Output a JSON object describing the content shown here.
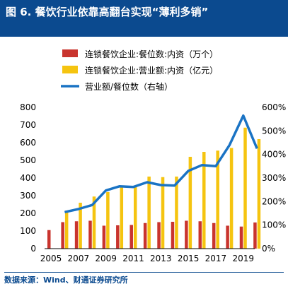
{
  "header": {
    "title": "图 6. 餐饮行业依靠高翻台实现“薄利多销”"
  },
  "footer": {
    "source": "数据来源：Wind、财通证券研究所"
  },
  "colors": {
    "header_bg": "#0b4a8f",
    "stores": "#c9342e",
    "revenue": "#f5c410",
    "ratio": "#1a73c4",
    "axis_text": "#000000"
  },
  "chart_data": {
    "type": "bar",
    "x": [
      2005,
      2006,
      2007,
      2008,
      2009,
      2010,
      2011,
      2012,
      2013,
      2014,
      2015,
      2016,
      2017,
      2018,
      2019,
      2020
    ],
    "x_tick_labels": [
      "2005",
      "2007",
      "2009",
      "2011",
      "2013",
      "2015",
      "2017",
      "2019"
    ],
    "series": [
      {
        "name": "连锁餐饮企业:餐位数:内资（万个）",
        "type": "bar",
        "axis": "left",
        "values": [
          105,
          150,
          155,
          158,
          130,
          132,
          134,
          145,
          150,
          152,
          158,
          155,
          145,
          130,
          125,
          148
        ]
      },
      {
        "name": "连锁餐饮企业:营业额:内资（亿元）",
        "type": "bar",
        "axis": "left",
        "values": [
          0,
          215,
          260,
          295,
          320,
          350,
          350,
          408,
          405,
          408,
          520,
          548,
          555,
          570,
          685,
          620
        ]
      },
      {
        "name": "营业额/餐位数（右轴）",
        "type": "line",
        "axis": "right",
        "values": [
          null,
          155,
          168,
          185,
          247,
          265,
          262,
          282,
          270,
          268,
          330,
          355,
          350,
          440,
          565,
          425
        ]
      }
    ],
    "left_axis": {
      "ylim": [
        0,
        800
      ],
      "ticks": [
        "0",
        "100",
        "200",
        "300",
        "400",
        "500",
        "600",
        "700",
        "800"
      ]
    },
    "right_axis": {
      "ylim": [
        0,
        600
      ],
      "ticks": [
        "0%",
        "100%",
        "200%",
        "300%",
        "400%",
        "500%",
        "600%"
      ]
    },
    "legend_position": "top",
    "grid": false
  }
}
